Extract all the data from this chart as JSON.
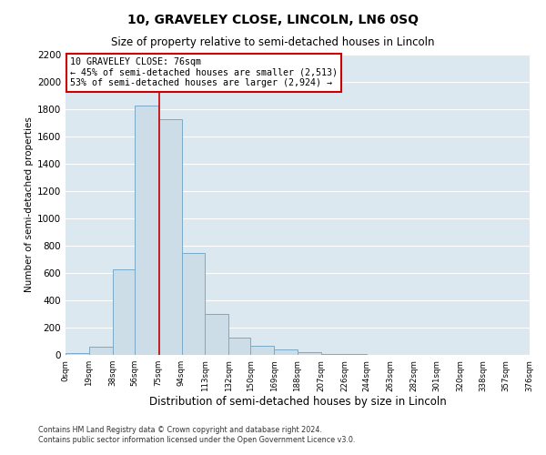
{
  "title": "10, GRAVELEY CLOSE, LINCOLN, LN6 0SQ",
  "subtitle": "Size of property relative to semi-detached houses in Lincoln",
  "xlabel": "Distribution of semi-detached houses by size in Lincoln",
  "ylabel": "Number of semi-detached properties",
  "bar_color": "#ccdde8",
  "bar_edge_color": "#7aaac8",
  "background_color": "#dce8f0",
  "grid_color": "#ffffff",
  "bin_edges": [
    0,
    19,
    38,
    56,
    75,
    94,
    113,
    132,
    150,
    169,
    188,
    207,
    226,
    244,
    263,
    282,
    301,
    320,
    338,
    357,
    376
  ],
  "bin_labels": [
    "0sqm",
    "19sqm",
    "38sqm",
    "56sqm",
    "75sqm",
    "94sqm",
    "113sqm",
    "132sqm",
    "150sqm",
    "169sqm",
    "188sqm",
    "207sqm",
    "226sqm",
    "244sqm",
    "263sqm",
    "282sqm",
    "301sqm",
    "320sqm",
    "338sqm",
    "357sqm",
    "376sqm"
  ],
  "counts": [
    15,
    60,
    625,
    1830,
    1730,
    745,
    300,
    130,
    65,
    40,
    20,
    10,
    5,
    3,
    2,
    2,
    1,
    1,
    0,
    0
  ],
  "property_size": 76,
  "property_label": "10 GRAVELEY CLOSE: 76sqm",
  "pct_smaller": 45,
  "pct_larger": 53,
  "n_smaller": 2513,
  "n_larger": 2924,
  "vline_color": "#cc0000",
  "annotation_box_edge": "#cc0000",
  "ylim": [
    0,
    2200
  ],
  "yticks": [
    0,
    200,
    400,
    600,
    800,
    1000,
    1200,
    1400,
    1600,
    1800,
    2000,
    2200
  ],
  "footer_line1": "Contains HM Land Registry data © Crown copyright and database right 2024.",
  "footer_line2": "Contains public sector information licensed under the Open Government Licence v3.0."
}
